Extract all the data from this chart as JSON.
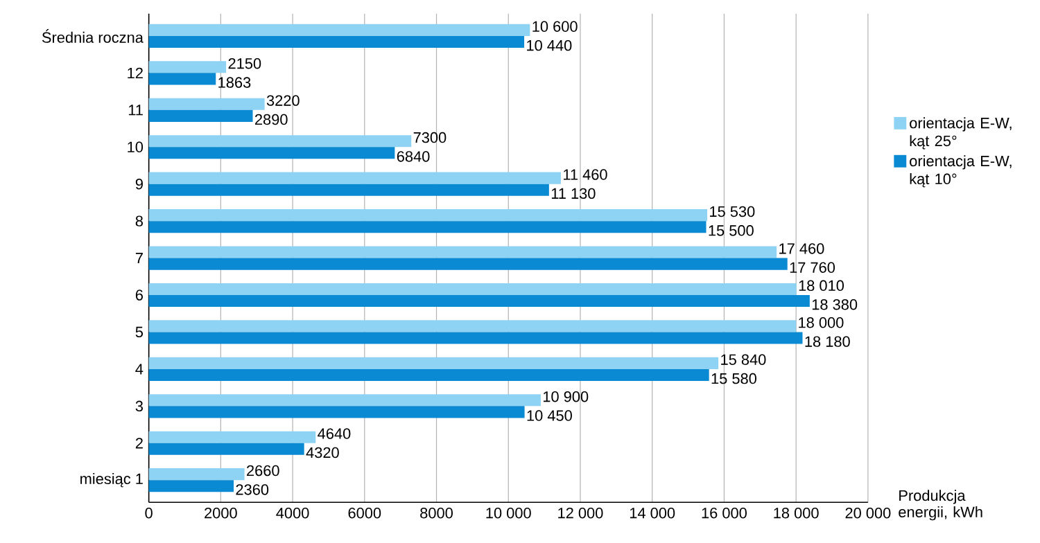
{
  "chart_data": {
    "type": "bar",
    "orientation": "horizontal",
    "xlabel": "Produkcja energii, kWh",
    "categories": [
      "Średnia roczna",
      "12",
      "11",
      "10",
      "9",
      "8",
      "7",
      "6",
      "5",
      "4",
      "3",
      "2",
      "miesiąc 1"
    ],
    "series": [
      {
        "name": "orientacja E-W, kąt 25°",
        "color": "#8fd3f4",
        "values": [
          10600,
          2150,
          3220,
          7300,
          11460,
          15530,
          17460,
          18010,
          18000,
          15840,
          10900,
          4640,
          2660
        ],
        "value_labels": [
          "10 600",
          "2150",
          "3220",
          "7300",
          "11 460",
          "15 530",
          "17 460",
          "18 010",
          "18 000",
          "15 840",
          "10 900",
          "4640",
          "2660"
        ]
      },
      {
        "name": "orientacja E-W, kąt 10°",
        "color": "#0a8ad2",
        "values": [
          10440,
          1863,
          2890,
          6840,
          11130,
          15500,
          17760,
          18380,
          18180,
          15580,
          10450,
          4320,
          2360
        ],
        "value_labels": [
          "10 440",
          "1863",
          "2890",
          "6840",
          "11 130",
          "15 500",
          "17 760",
          "18 380",
          "18 180",
          "15 580",
          "10 450",
          "4320",
          "2360"
        ]
      }
    ],
    "xlim": [
      0,
      20000
    ],
    "xticks": [
      0,
      2000,
      4000,
      6000,
      8000,
      {
        "value": 10000,
        "label": "10 000"
      },
      {
        "value": 12000,
        "label": "12 000"
      },
      {
        "value": 14000,
        "label": "14 000"
      },
      {
        "value": 16000,
        "label": "16 000"
      },
      {
        "value": 18000,
        "label": "18 000"
      },
      {
        "value": 20000,
        "label": "20 000"
      }
    ],
    "grid": "x",
    "legend": "right"
  }
}
